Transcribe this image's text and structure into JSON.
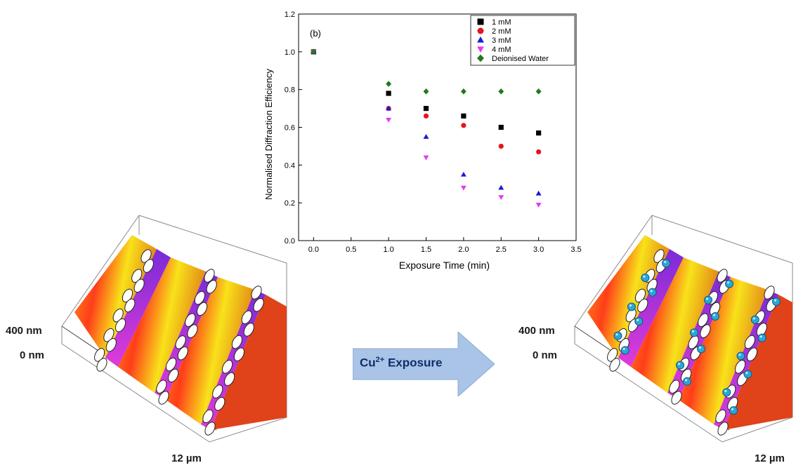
{
  "chart_data": {
    "type": "scatter",
    "panel_label": "(b)",
    "xlabel": "Exposure Time (min)",
    "ylabel": "Normalised Diffraction Efficiency",
    "xlim": [
      -0.2,
      3.5
    ],
    "ylim": [
      0.0,
      1.2
    ],
    "xticks": [
      "0.0",
      "0.5",
      "1.0",
      "1.5",
      "2.0",
      "2.5",
      "3.0",
      "3.5"
    ],
    "yticks": [
      "0.0",
      "0.2",
      "0.4",
      "0.6",
      "0.8",
      "1.0",
      "1.2"
    ],
    "legend_position": "top-right",
    "x": [
      0,
      1,
      1.5,
      2,
      2.5,
      3
    ],
    "series": [
      {
        "name": "1 mM",
        "marker": "square",
        "color": "#000000",
        "values": [
          1.0,
          0.78,
          0.7,
          0.66,
          0.6,
          0.57
        ]
      },
      {
        "name": "2 mM",
        "marker": "circle",
        "color": "#e8141c",
        "values": [
          1.0,
          0.7,
          0.66,
          0.61,
          0.5,
          0.47
        ]
      },
      {
        "name": "3 mM",
        "marker": "triangle-up",
        "color": "#1a1ad6",
        "values": [
          1.0,
          0.7,
          0.55,
          0.35,
          0.28,
          0.25
        ]
      },
      {
        "name": "4 mM",
        "marker": "triangle-down",
        "color": "#e43bf0",
        "values": [
          1.0,
          0.64,
          0.44,
          0.28,
          0.23,
          0.19
        ]
      },
      {
        "name": "Deionised Water",
        "marker": "diamond",
        "color": "#1f7a1f",
        "values": [
          1.0,
          0.83,
          0.79,
          0.79,
          0.79,
          0.79
        ]
      }
    ]
  },
  "left_panel": {
    "height_max_label": "400 nm",
    "height_min_label": "0 nm",
    "width_label": "12 µm"
  },
  "right_panel": {
    "height_max_label": "400 nm",
    "height_min_label": "0 nm",
    "width_label": "12 µm"
  },
  "arrow": {
    "label_main": "Cu",
    "label_sup": "2+",
    "label_tail": " Exposure",
    "fill_color": "#a9c4e6"
  }
}
